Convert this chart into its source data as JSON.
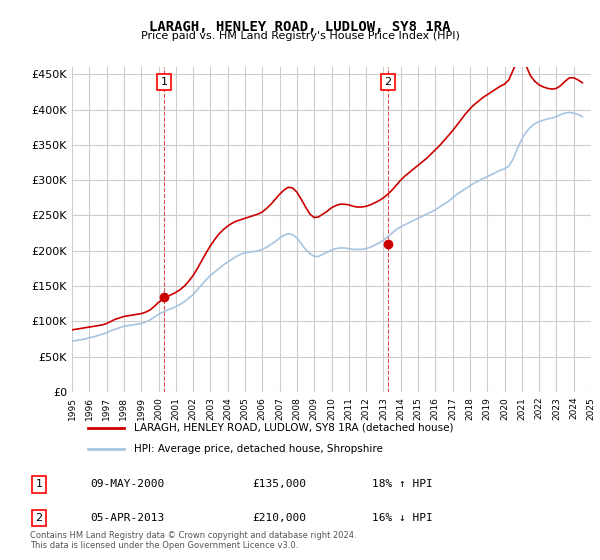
{
  "title": "LARAGH, HENLEY ROAD, LUDLOW, SY8 1RA",
  "subtitle": "Price paid vs. HM Land Registry's House Price Index (HPI)",
  "legend_entry1": "LARAGH, HENLEY ROAD, LUDLOW, SY8 1RA (detached house)",
  "legend_entry2": "HPI: Average price, detached house, Shropshire",
  "annotation1_label": "1",
  "annotation1_date": "09-MAY-2000",
  "annotation1_price": 135000,
  "annotation1_hpi": "18% ↑ HPI",
  "annotation2_label": "2",
  "annotation2_date": "05-APR-2013",
  "annotation2_price": 210000,
  "annotation2_hpi": "16% ↓ HPI",
  "footer": "Contains HM Land Registry data © Crown copyright and database right 2024.\nThis data is licensed under the Open Government Licence v3.0.",
  "ylim": [
    0,
    460000
  ],
  "yticks": [
    0,
    50000,
    100000,
    150000,
    200000,
    250000,
    300000,
    350000,
    400000,
    450000
  ],
  "hpi_color": "#a8c4e0",
  "price_color": "#cc0000",
  "dot_color": "#cc0000",
  "background_color": "#ffffff",
  "grid_color": "#cccccc",
  "hpi_x": [
    1995,
    1995.25,
    1995.5,
    1995.75,
    1996,
    1996.25,
    1996.5,
    1996.75,
    1997,
    1997.25,
    1997.5,
    1997.75,
    1998,
    1998.25,
    1998.5,
    1998.75,
    1999,
    1999.25,
    1999.5,
    1999.75,
    2000,
    2000.25,
    2000.5,
    2000.75,
    2001,
    2001.25,
    2001.5,
    2001.75,
    2002,
    2002.25,
    2002.5,
    2002.75,
    2003,
    2003.25,
    2003.5,
    2003.75,
    2004,
    2004.25,
    2004.5,
    2004.75,
    2005,
    2005.25,
    2005.5,
    2005.75,
    2006,
    2006.25,
    2006.5,
    2006.75,
    2007,
    2007.25,
    2007.5,
    2007.75,
    2008,
    2008.25,
    2008.5,
    2008.75,
    2009,
    2009.25,
    2009.5,
    2009.75,
    2010,
    2010.25,
    2010.5,
    2010.75,
    2011,
    2011.25,
    2011.5,
    2011.75,
    2012,
    2012.25,
    2012.5,
    2012.75,
    2013,
    2013.25,
    2013.5,
    2013.75,
    2014,
    2014.25,
    2014.5,
    2014.75,
    2015,
    2015.25,
    2015.5,
    2015.75,
    2016,
    2016.25,
    2016.5,
    2016.75,
    2017,
    2017.25,
    2017.5,
    2017.75,
    2018,
    2018.25,
    2018.5,
    2018.75,
    2019,
    2019.25,
    2019.5,
    2019.75,
    2020,
    2020.25,
    2020.5,
    2020.75,
    2021,
    2021.25,
    2021.5,
    2021.75,
    2022,
    2022.25,
    2022.5,
    2022.75,
    2023,
    2023.25,
    2023.5,
    2023.75,
    2024,
    2024.25,
    2024.5
  ],
  "hpi_y": [
    72000,
    73000,
    74000,
    75000,
    77000,
    78000,
    80000,
    82000,
    84000,
    87000,
    89000,
    91000,
    93000,
    94000,
    95000,
    96000,
    97000,
    99000,
    102000,
    106000,
    110000,
    113000,
    116000,
    118000,
    121000,
    124000,
    128000,
    133000,
    138000,
    145000,
    152000,
    159000,
    165000,
    170000,
    175000,
    180000,
    184000,
    188000,
    192000,
    195000,
    197000,
    198000,
    199000,
    200000,
    202000,
    205000,
    209000,
    213000,
    218000,
    222000,
    224000,
    223000,
    218000,
    210000,
    202000,
    196000,
    192000,
    192000,
    195000,
    198000,
    201000,
    203000,
    204000,
    204000,
    203000,
    202000,
    202000,
    202000,
    203000,
    205000,
    208000,
    211000,
    215000,
    220000,
    225000,
    230000,
    234000,
    237000,
    240000,
    243000,
    246000,
    249000,
    252000,
    255000,
    258000,
    262000,
    266000,
    270000,
    275000,
    280000,
    284000,
    288000,
    292000,
    296000,
    299000,
    302000,
    305000,
    308000,
    311000,
    314000,
    316000,
    320000,
    330000,
    345000,
    358000,
    368000,
    375000,
    380000,
    383000,
    385000,
    387000,
    388000,
    390000,
    393000,
    395000,
    396000,
    395000,
    393000,
    390000
  ],
  "price_x": [
    1995,
    1995.25,
    1995.5,
    1995.75,
    1996,
    1996.25,
    1996.5,
    1996.75,
    1997,
    1997.25,
    1997.5,
    1997.75,
    1998,
    1998.25,
    1998.5,
    1998.75,
    1999,
    1999.25,
    1999.5,
    1999.75,
    2000,
    2000.25,
    2000.5,
    2000.75,
    2001,
    2001.25,
    2001.5,
    2001.75,
    2002,
    2002.25,
    2002.5,
    2002.75,
    2003,
    2003.25,
    2003.5,
    2003.75,
    2004,
    2004.25,
    2004.5,
    2004.75,
    2005,
    2005.25,
    2005.5,
    2005.75,
    2006,
    2006.25,
    2006.5,
    2006.75,
    2007,
    2007.25,
    2007.5,
    2007.75,
    2008,
    2008.25,
    2008.5,
    2008.75,
    2009,
    2009.25,
    2009.5,
    2009.75,
    2010,
    2010.25,
    2010.5,
    2010.75,
    2011,
    2011.25,
    2011.5,
    2011.75,
    2012,
    2012.25,
    2012.5,
    2012.75,
    2013,
    2013.25,
    2013.5,
    2013.75,
    2014,
    2014.25,
    2014.5,
    2014.75,
    2015,
    2015.25,
    2015.5,
    2015.75,
    2016,
    2016.25,
    2016.5,
    2016.75,
    2017,
    2017.25,
    2017.5,
    2017.75,
    2018,
    2018.25,
    2018.5,
    2018.75,
    2019,
    2019.25,
    2019.5,
    2019.75,
    2020,
    2020.25,
    2020.5,
    2020.75,
    2021,
    2021.25,
    2021.5,
    2021.75,
    2022,
    2022.25,
    2022.5,
    2022.75,
    2023,
    2023.25,
    2023.5,
    2023.75,
    2024,
    2024.25,
    2024.5
  ],
  "price_y": [
    88000,
    89000,
    90000,
    91000,
    92000,
    93000,
    94000,
    95000,
    97000,
    100000,
    103000,
    105000,
    107000,
    108000,
    109000,
    110000,
    111000,
    113000,
    116000,
    121000,
    127000,
    131000,
    135000,
    138000,
    141000,
    145000,
    150000,
    157000,
    165000,
    175000,
    186000,
    197000,
    207000,
    216000,
    224000,
    230000,
    235000,
    239000,
    242000,
    244000,
    246000,
    248000,
    250000,
    252000,
    255000,
    260000,
    266000,
    273000,
    280000,
    286000,
    290000,
    289000,
    283000,
    273000,
    262000,
    252000,
    247000,
    248000,
    252000,
    256000,
    261000,
    264000,
    266000,
    266000,
    265000,
    263000,
    262000,
    262000,
    263000,
    265000,
    268000,
    271000,
    275000,
    280000,
    286000,
    293000,
    300000,
    306000,
    311000,
    316000,
    321000,
    326000,
    331000,
    337000,
    343000,
    349000,
    356000,
    363000,
    370000,
    378000,
    386000,
    394000,
    401000,
    407000,
    412000,
    417000,
    421000,
    425000,
    429000,
    433000,
    436000,
    442000,
    456000,
    470000,
    473000,
    462000,
    448000,
    440000,
    435000,
    432000,
    430000,
    429000,
    430000,
    434000,
    440000,
    445000,
    445000,
    442000,
    438000
  ],
  "anno1_x": 2000.33,
  "anno1_y": 135000,
  "anno2_x": 2013.25,
  "anno2_y": 210000,
  "xmin": 1995,
  "xmax": 2025
}
